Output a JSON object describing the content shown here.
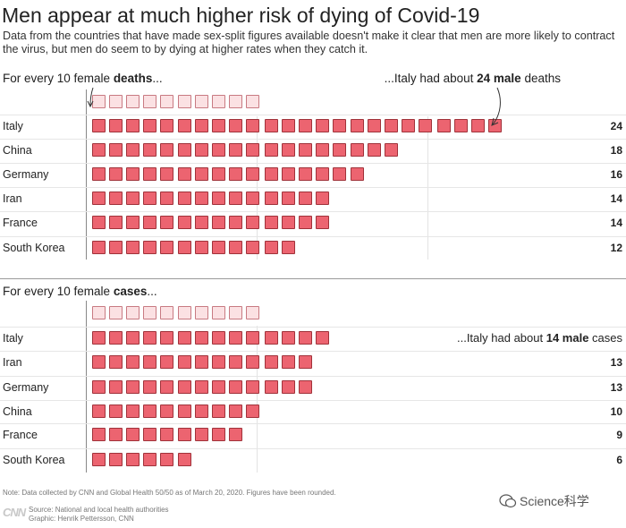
{
  "title": "Men appear at much higher risk of dying of Covid-19",
  "subtitle": "Data from the countries that have made sex-split figures available doesn't make it clear that men are more likely to contract the virus, but men do seem to by dying at higher rates when they catch it.",
  "chart_data": [
    {
      "type": "bar",
      "title": "",
      "unit_label_prefix": "For every 10 female ",
      "unit_label_bold": "deaths",
      "unit_label_suffix": "...",
      "callout_prefix": "...Italy had about ",
      "callout_bold": "24 male",
      "callout_suffix": " deaths",
      "female_baseline": 10,
      "categories": [
        "Italy",
        "China",
        "Germany",
        "Iran",
        "France",
        "South Korea"
      ],
      "values": [
        24,
        18,
        16,
        14,
        14,
        12
      ],
      "value_labels": [
        "24",
        "18",
        "16",
        "14",
        "14",
        "12"
      ],
      "colors": {
        "male": "#ec6470",
        "female": "#fbe1e3"
      }
    },
    {
      "type": "bar",
      "title": "",
      "unit_label_prefix": "For every 10 female ",
      "unit_label_bold": "cases",
      "unit_label_suffix": "...",
      "callout_prefix": "...Italy had about ",
      "callout_bold": "14 male",
      "callout_suffix": " cases",
      "female_baseline": 10,
      "categories": [
        "Italy",
        "Iran",
        "Germany",
        "China",
        "France",
        "South Korea"
      ],
      "values": [
        14,
        13,
        13,
        10,
        9,
        6
      ],
      "value_labels": [
        "",
        "13",
        "13",
        "10",
        "9",
        "6"
      ],
      "colors": {
        "male": "#ec6470",
        "female": "#fbe1e3"
      }
    }
  ],
  "footer": {
    "note": "Note: Data collected by CNN and Global Health 50/50 as of March 20, 2020. Figures have been rounded.",
    "logo": "CNN",
    "source_line1": "Source: National and local health authorities",
    "source_line2": "Graphic: Henrik Pettersson, CNN",
    "watermark": "Science科学"
  }
}
